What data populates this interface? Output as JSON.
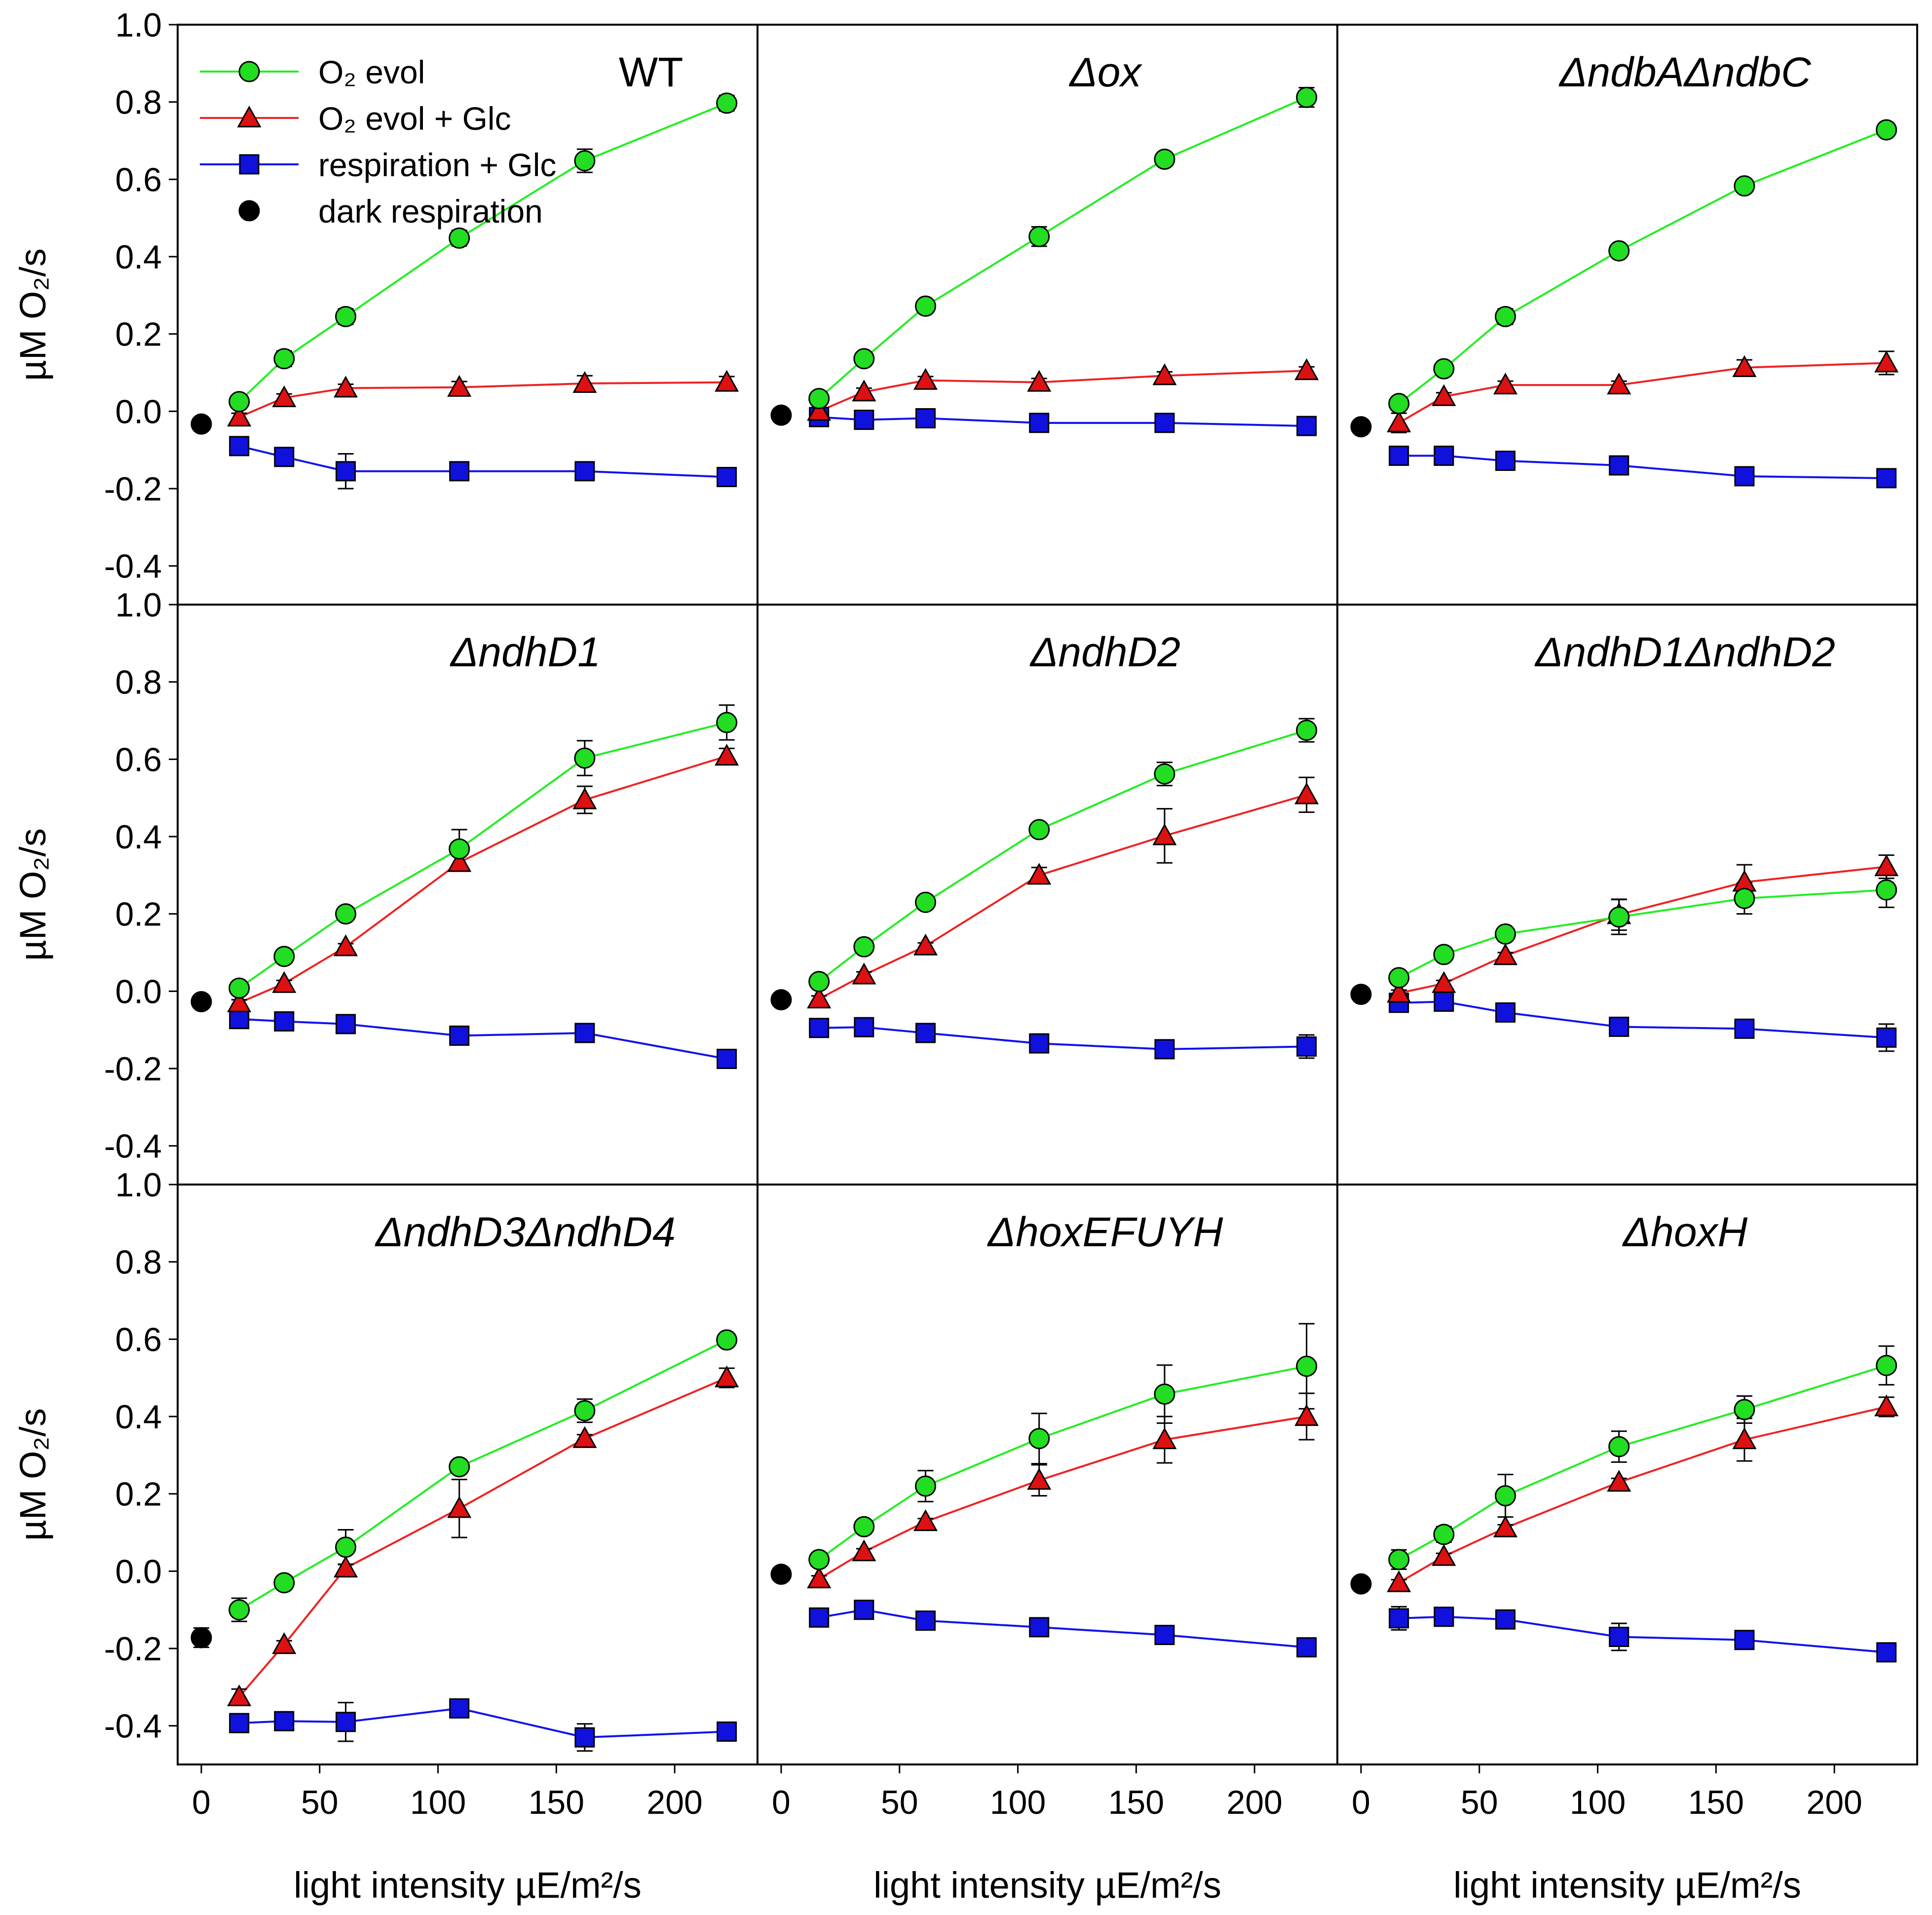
{
  "chart_data": {
    "type": "scatter",
    "layout": "3x3 grid of panels with shared axes",
    "xlabel": "light intensity µE/m²/s",
    "ylabel": "µM O₂/s",
    "xlim": [
      -10,
      235
    ],
    "ylim": [
      -0.5,
      1.0
    ],
    "x_ticks": [
      0,
      50,
      100,
      150,
      200
    ],
    "y_ticks": [
      -0.4,
      -0.2,
      0.0,
      0.2,
      0.4,
      0.6,
      0.8,
      1.0
    ],
    "x_tick_labels": [
      "0",
      "50",
      "100",
      "150",
      "200"
    ],
    "y_tick_labels": [
      "-0.4",
      "-0.2",
      "0.0",
      "0.2",
      "0.4",
      "0.6",
      "0.8",
      "1.0"
    ],
    "x": [
      16,
      35,
      61,
      109,
      162,
      222
    ],
    "grid": false,
    "legend": {
      "placement": "top-left of first panel",
      "entries": [
        {
          "key": "o2_evol",
          "label": "O₂ evol"
        },
        {
          "key": "o2_evol_glc",
          "label": "O₂ evol + Glc"
        },
        {
          "key": "resp_glc",
          "label": "respiration + Glc"
        },
        {
          "key": "dark",
          "label": "dark respiration"
        }
      ]
    },
    "series_styles": {
      "o2_evol": {
        "marker": "circle",
        "fill": "#22dd22",
        "line": "#22ee22"
      },
      "o2_evol_glc": {
        "marker": "triangle",
        "fill": "#dd1111",
        "line": "#ee2222"
      },
      "resp_glc": {
        "marker": "square",
        "fill": "#1111dd",
        "line": "#1111ee"
      },
      "dark": {
        "marker": "circle",
        "fill": "#000000"
      }
    },
    "panels": [
      {
        "title": "WT",
        "title_style": "upright",
        "dark": [
          0,
          -0.033,
          0.008
        ],
        "o2_evol": [
          0.025,
          0.136,
          0.245,
          0.448,
          0.648,
          0.797
        ],
        "o2_evol_err": [
          0.01,
          0.02,
          0.02,
          0.02,
          0.03,
          0.02
        ],
        "o2_evol_glc": [
          -0.015,
          0.035,
          0.06,
          0.062,
          0.072,
          0.075
        ],
        "o2_evol_glc_err": [
          0.01,
          0.01,
          0.01,
          0.015,
          0.02,
          0.015
        ],
        "resp_glc": [
          -0.09,
          -0.118,
          -0.155,
          -0.155,
          -0.155,
          -0.17
        ],
        "resp_glc_err": [
          0.01,
          0.01,
          0.045,
          0.01,
          0.02,
          0.02
        ]
      },
      {
        "title": "Δox",
        "title_style": "italic",
        "dark": [
          0,
          -0.01,
          0.008
        ],
        "o2_evol": [
          0.033,
          0.136,
          0.272,
          0.452,
          0.652,
          0.812
        ],
        "o2_evol_err": [
          0.01,
          0.01,
          0.01,
          0.025,
          0.01,
          0.025
        ],
        "o2_evol_glc": [
          0.0,
          0.05,
          0.08,
          0.075,
          0.092,
          0.105
        ],
        "o2_evol_glc_err": [
          0.01,
          0.01,
          0.01,
          0.01,
          0.01,
          0.01
        ],
        "resp_glc": [
          -0.015,
          -0.022,
          -0.018,
          -0.03,
          -0.03,
          -0.038
        ],
        "resp_glc_err": [
          0.01,
          0.01,
          0.01,
          0.01,
          0.01,
          0.01
        ]
      },
      {
        "title": "ΔndbAΔndbC",
        "title_style": "italic",
        "dark": [
          0,
          -0.04,
          0.008
        ],
        "o2_evol": [
          0.02,
          0.11,
          0.245,
          0.415,
          0.583,
          0.728
        ],
        "o2_evol_err": [
          0.01,
          0.01,
          0.02,
          0.01,
          0.015,
          0.01
        ],
        "o2_evol_glc": [
          -0.03,
          0.038,
          0.068,
          0.068,
          0.113,
          0.125
        ],
        "o2_evol_glc_err": [
          0.025,
          0.01,
          0.01,
          0.01,
          0.02,
          0.03
        ],
        "resp_glc": [
          -0.115,
          -0.115,
          -0.128,
          -0.14,
          -0.168,
          -0.173
        ],
        "resp_glc_err": [
          0.02,
          0.01,
          0.01,
          0.01,
          0.01,
          0.01
        ]
      },
      {
        "title": "ΔndhD1",
        "title_style": "italic",
        "dark": [
          0,
          -0.027,
          0.008
        ],
        "o2_evol": [
          0.008,
          0.09,
          0.2,
          0.368,
          0.603,
          0.695
        ],
        "o2_evol_err": [
          0.008,
          0.008,
          0.01,
          0.05,
          0.045,
          0.045
        ],
        "o2_evol_glc": [
          -0.03,
          0.02,
          0.115,
          0.333,
          0.495,
          0.608
        ],
        "o2_evol_glc_err": [
          0.008,
          0.008,
          0.008,
          0.02,
          0.035,
          0.02
        ],
        "resp_glc": [
          -0.072,
          -0.078,
          -0.085,
          -0.115,
          -0.108,
          -0.175
        ],
        "resp_glc_err": [
          0.008,
          0.008,
          0.01,
          0.01,
          0.01,
          0.01
        ]
      },
      {
        "title": "ΔndhD2",
        "title_style": "italic",
        "dark": [
          0,
          -0.022,
          0.008
        ],
        "o2_evol": [
          0.025,
          0.115,
          0.23,
          0.418,
          0.562,
          0.675
        ],
        "o2_evol_err": [
          0.008,
          0.008,
          0.008,
          0.015,
          0.03,
          0.03
        ],
        "o2_evol_glc": [
          -0.02,
          0.042,
          0.117,
          0.3,
          0.402,
          0.508
        ],
        "o2_evol_glc_err": [
          0.008,
          0.008,
          0.008,
          0.02,
          0.07,
          0.045
        ],
        "resp_glc": [
          -0.095,
          -0.093,
          -0.108,
          -0.135,
          -0.15,
          -0.143
        ],
        "resp_glc_err": [
          0.01,
          0.008,
          0.01,
          0.008,
          0.01,
          0.03
        ]
      },
      {
        "title": "ΔndhD1ΔndhD2",
        "title_style": "italic",
        "dark": [
          0,
          -0.008,
          0.008
        ],
        "o2_evol": [
          0.035,
          0.095,
          0.148,
          0.192,
          0.24,
          0.262
        ],
        "o2_evol_err": [
          0.008,
          0.008,
          0.01,
          0.045,
          0.04,
          0.045
        ],
        "o2_evol_glc": [
          -0.005,
          0.02,
          0.092,
          0.198,
          0.282,
          0.322
        ],
        "o2_evol_glc_err": [
          0.008,
          0.008,
          0.008,
          0.04,
          0.045,
          0.03
        ],
        "resp_glc": [
          -0.03,
          -0.027,
          -0.055,
          -0.092,
          -0.097,
          -0.12
        ],
        "resp_glc_err": [
          0.01,
          0.01,
          0.015,
          0.01,
          0.02,
          0.035
        ]
      },
      {
        "title": "ΔndhD3ΔndhD4",
        "title_style": "italic",
        "dark": [
          0,
          -0.172,
          0.025
        ],
        "o2_evol": [
          -0.1,
          -0.03,
          0.062,
          0.27,
          0.415,
          0.598
        ],
        "o2_evol_err": [
          0.03,
          0.01,
          0.045,
          0.01,
          0.03,
          0.01
        ],
        "o2_evol_glc": [
          -0.325,
          -0.19,
          0.008,
          0.162,
          0.343,
          0.5
        ],
        "o2_evol_glc_err": [
          0.02,
          0.01,
          0.01,
          0.075,
          0.01,
          0.025
        ],
        "resp_glc": [
          -0.393,
          -0.388,
          -0.39,
          -0.355,
          -0.43,
          -0.415
        ],
        "resp_glc_err": [
          0.01,
          0.015,
          0.05,
          0.01,
          0.035,
          0.01
        ]
      },
      {
        "title": "ΔhoxEFUYH",
        "title_style": "italic",
        "dark": [
          0,
          -0.008,
          0.008
        ],
        "o2_evol": [
          0.03,
          0.115,
          0.22,
          0.343,
          0.458,
          0.53
        ],
        "o2_evol_err": [
          0.01,
          0.015,
          0.04,
          0.065,
          0.075,
          0.11
        ],
        "o2_evol_glc": [
          -0.02,
          0.05,
          0.128,
          0.235,
          0.34,
          0.4
        ],
        "o2_evol_glc_err": [
          0.008,
          0.008,
          0.008,
          0.04,
          0.06,
          0.06
        ],
        "resp_glc": [
          -0.12,
          -0.1,
          -0.128,
          -0.145,
          -0.165,
          -0.197
        ],
        "resp_glc_err": [
          0.02,
          0.01,
          0.02,
          0.01,
          0.01,
          0.01
        ]
      },
      {
        "title": "ΔhoxH",
        "title_style": "italic",
        "dark": [
          0,
          -0.033,
          0.008
        ],
        "o2_evol": [
          0.03,
          0.095,
          0.195,
          0.322,
          0.418,
          0.532
        ],
        "o2_evol_err": [
          0.025,
          0.02,
          0.055,
          0.04,
          0.035,
          0.05
        ],
        "o2_evol_glc": [
          -0.03,
          0.038,
          0.112,
          0.23,
          0.34,
          0.425
        ],
        "o2_evol_glc_err": [
          0.008,
          0.008,
          0.008,
          0.01,
          0.055,
          0.025
        ],
        "resp_glc": [
          -0.122,
          -0.118,
          -0.125,
          -0.17,
          -0.178,
          -0.21
        ],
        "resp_glc_err": [
          0.03,
          0.01,
          0.01,
          0.035,
          0.01,
          0.01
        ]
      }
    ]
  }
}
